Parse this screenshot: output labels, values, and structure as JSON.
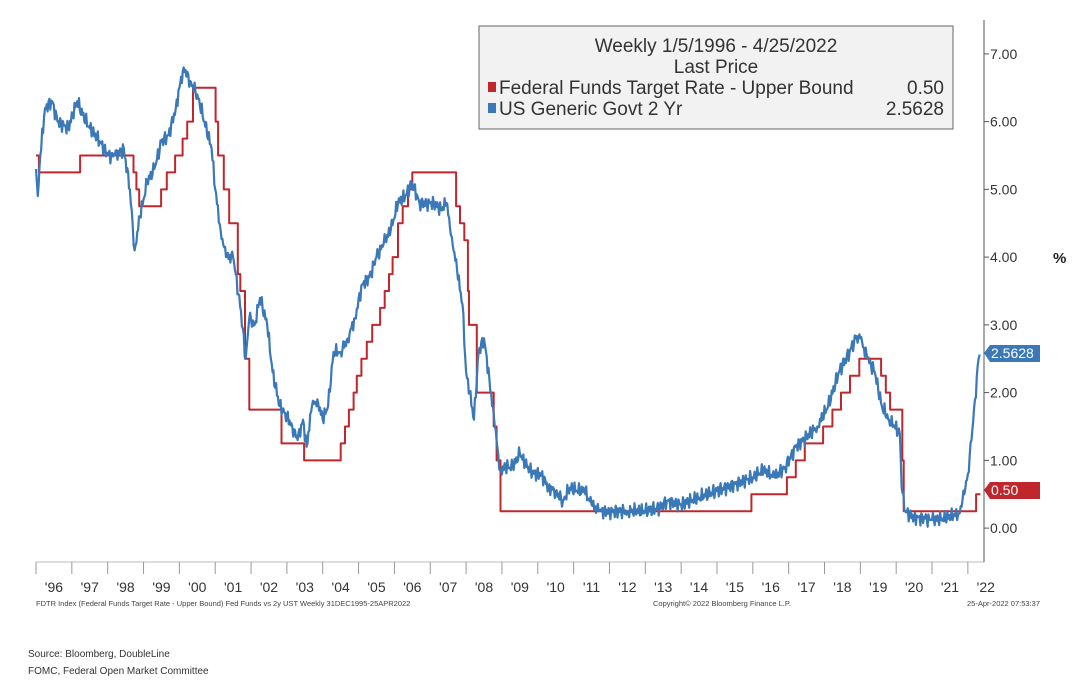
{
  "colors": {
    "fed_funds": "#c0272d",
    "treasury_2y": "#3a78b7",
    "axis": "#333333",
    "legend_bg": "#f2f2f2"
  },
  "legend": {
    "title_line1": "Weekly 1/5/1996 - 4/25/2022",
    "title_line2": "Last Price",
    "fed_label": "Federal Funds Target Rate - Upper Bound",
    "fed_value": "0.50",
    "ust_label": "US Generic Govt 2 Yr",
    "ust_value": "2.5628"
  },
  "footer": {
    "left": "FDTR Index (Federal Funds Target Rate - Upper Bound) Fed Funds vs 2y UST  Weekly 31DEC1995-25APR2022",
    "center": "Copyright© 2022 Bloomberg Finance L.P.",
    "right": "25-Apr-2022 07:53:37"
  },
  "source": {
    "line1": "Source: Bloomberg, DoubleLine",
    "line2": "FOMC, Federal Open Market Committee"
  },
  "chart_data": {
    "type": "line",
    "unit_label": "%",
    "ylim": [
      -0.5,
      7.5
    ],
    "xlim": [
      1996.0,
      2022.45
    ],
    "yticks": [
      0,
      1,
      2,
      3,
      4,
      5,
      6,
      7
    ],
    "ytick_labels": [
      "0.00",
      "1.00",
      "2.00",
      "3.00",
      "4.00",
      "5.00",
      "6.00",
      "7.00"
    ],
    "xtick_labels": [
      "'96",
      "'97",
      "'98",
      "'99",
      "'00",
      "'01",
      "'02",
      "'03",
      "'04",
      "'05",
      "'06",
      "'07",
      "'08",
      "'09",
      "'10",
      "'11",
      "'12",
      "'13",
      "'14",
      "'15",
      "'16",
      "'17",
      "'18",
      "'19",
      "'20",
      "'21",
      "'22"
    ],
    "grid": false,
    "legend_position": "top-right",
    "series": [
      {
        "name": "Federal Funds Target Rate - Upper Bound",
        "step": true,
        "last": 0.5,
        "x": [
          1996.0,
          1996.08,
          1997.23,
          1998.72,
          1998.8,
          1998.88,
          1999.49,
          1999.65,
          1999.88,
          2000.09,
          2000.22,
          2000.38,
          2001.01,
          2001.08,
          2001.24,
          2001.39,
          2001.63,
          2001.7,
          2001.83,
          2001.95,
          2002.85,
          2003.48,
          2004.5,
          2004.62,
          2004.73,
          2004.86,
          2004.95,
          2005.08,
          2005.23,
          2005.38,
          2005.6,
          2005.73,
          2005.85,
          2005.95,
          2006.1,
          2006.23,
          2006.38,
          2006.5,
          2007.72,
          2007.83,
          2007.95,
          2008.05,
          2008.08,
          2008.3,
          2008.77,
          2008.85,
          2008.96,
          2015.96,
          2016.95,
          2017.2,
          2017.45,
          2017.96,
          2018.22,
          2018.46,
          2018.71,
          2018.97,
          2019.58,
          2019.71,
          2019.83,
          2020.17,
          2020.21,
          2022.23,
          2022.35
        ],
        "y": [
          5.5,
          5.25,
          5.5,
          5.25,
          5.0,
          4.75,
          5.0,
          5.25,
          5.5,
          5.75,
          6.0,
          6.5,
          6.0,
          5.5,
          5.0,
          4.5,
          3.75,
          3.5,
          2.5,
          1.75,
          1.25,
          1.0,
          1.25,
          1.5,
          1.75,
          2.0,
          2.25,
          2.5,
          2.75,
          3.0,
          3.25,
          3.5,
          3.75,
          4.0,
          4.5,
          4.75,
          5.0,
          5.25,
          4.75,
          4.5,
          4.25,
          3.5,
          3.0,
          2.0,
          1.5,
          1.0,
          0.25,
          0.5,
          0.75,
          1.0,
          1.25,
          1.5,
          1.75,
          2.0,
          2.25,
          2.5,
          2.25,
          2.0,
          1.75,
          1.0,
          0.25,
          0.5,
          0.5
        ]
      },
      {
        "name": "US Generic Govt 2 Yr",
        "step": false,
        "last": 2.5628,
        "x": [
          1996.0,
          1996.05,
          1996.12,
          1996.25,
          1996.45,
          1996.6,
          1996.9,
          1997.15,
          1997.3,
          1997.5,
          1997.8,
          1998.0,
          1998.2,
          1998.45,
          1998.62,
          1998.75,
          1998.9,
          1999.1,
          1999.3,
          1999.5,
          1999.7,
          1999.9,
          2000.0,
          2000.12,
          2000.3,
          2000.5,
          2000.7,
          2000.9,
          2001.0,
          2001.15,
          2001.3,
          2001.5,
          2001.72,
          2001.85,
          2001.95,
          2002.1,
          2002.25,
          2002.45,
          2002.6,
          2002.8,
          2002.95,
          2003.15,
          2003.3,
          2003.45,
          2003.55,
          2003.7,
          2003.85,
          2004.0,
          2004.15,
          2004.3,
          2004.5,
          2004.7,
          2004.9,
          2005.1,
          2005.3,
          2005.5,
          2005.7,
          2005.9,
          2006.1,
          2006.3,
          2006.5,
          2006.7,
          2006.9,
          2007.1,
          2007.3,
          2007.45,
          2007.6,
          2007.75,
          2007.9,
          2008.0,
          2008.1,
          2008.22,
          2008.35,
          2008.5,
          2008.65,
          2008.8,
          2008.95,
          2009.1,
          2009.3,
          2009.5,
          2009.7,
          2009.9,
          2010.1,
          2010.3,
          2010.5,
          2010.7,
          2010.9,
          2011.1,
          2011.3,
          2011.5,
          2011.7,
          2012.0,
          2012.5,
          2013.0,
          2013.4,
          2013.6,
          2014.0,
          2014.5,
          2015.0,
          2015.5,
          2016.0,
          2016.3,
          2016.6,
          2016.9,
          2017.2,
          2017.5,
          2017.8,
          2018.1,
          2018.4,
          2018.7,
          2018.87,
          2019.0,
          2019.2,
          2019.4,
          2019.6,
          2019.8,
          2019.95,
          2020.1,
          2020.15,
          2020.25,
          2020.5,
          2020.8,
          2021.0,
          2021.3,
          2021.6,
          2021.75,
          2021.9,
          2022.0,
          2022.1,
          2022.2,
          2022.3,
          2022.33
        ],
        "y": [
          5.3,
          4.9,
          5.5,
          6.2,
          6.3,
          6.0,
          5.9,
          6.3,
          6.1,
          5.9,
          5.7,
          5.5,
          5.5,
          5.6,
          5.0,
          4.1,
          4.6,
          5.1,
          5.3,
          5.7,
          5.8,
          6.2,
          6.5,
          6.8,
          6.6,
          6.4,
          6.0,
          5.6,
          5.0,
          4.4,
          4.0,
          4.0,
          3.2,
          2.5,
          3.1,
          3.0,
          3.4,
          3.0,
          2.3,
          1.8,
          1.7,
          1.5,
          1.3,
          1.6,
          1.2,
          1.8,
          1.9,
          1.6,
          1.8,
          2.6,
          2.6,
          2.8,
          3.1,
          3.6,
          3.7,
          4.0,
          4.2,
          4.4,
          4.8,
          4.9,
          5.1,
          4.8,
          4.8,
          4.8,
          4.7,
          4.8,
          4.3,
          3.8,
          3.3,
          2.3,
          2.0,
          1.6,
          2.6,
          2.8,
          2.2,
          1.5,
          0.85,
          0.9,
          0.9,
          1.1,
          0.9,
          0.8,
          0.8,
          0.6,
          0.55,
          0.4,
          0.6,
          0.55,
          0.55,
          0.35,
          0.25,
          0.25,
          0.25,
          0.25,
          0.3,
          0.4,
          0.35,
          0.45,
          0.55,
          0.65,
          0.75,
          0.85,
          0.75,
          0.9,
          1.2,
          1.35,
          1.5,
          1.8,
          2.3,
          2.6,
          2.8,
          2.8,
          2.5,
          2.3,
          1.8,
          1.6,
          1.5,
          1.4,
          0.6,
          0.25,
          0.16,
          0.14,
          0.12,
          0.14,
          0.18,
          0.22,
          0.5,
          0.8,
          1.3,
          1.9,
          2.5,
          2.5628
        ]
      }
    ]
  }
}
